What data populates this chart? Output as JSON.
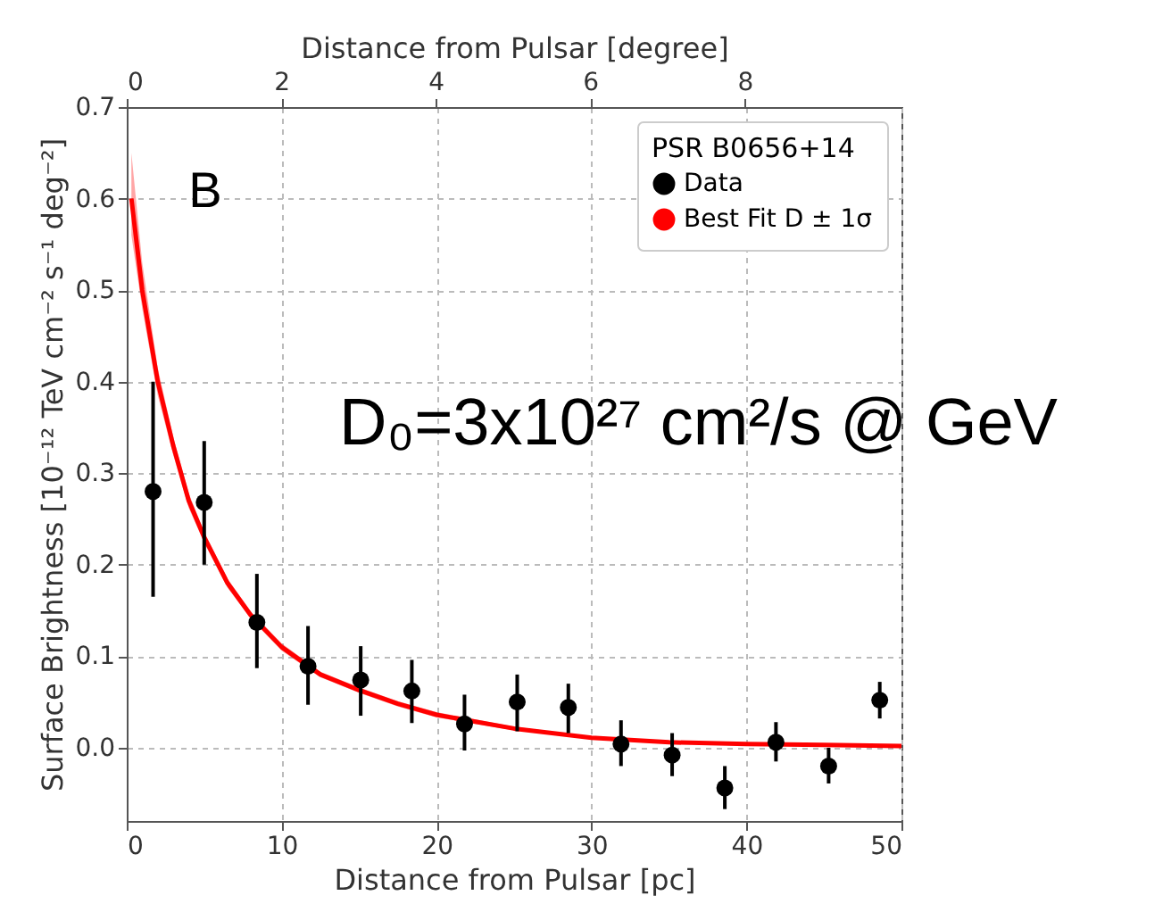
{
  "chart_data": {
    "type": "scatter",
    "xlabel": "Distance from Pulsar [pc]",
    "x2label": "Distance from Pulsar [degree]",
    "ylabel": "Surface Brightness [10⁻¹² TeV cm⁻² s⁻¹ deg⁻²]",
    "legend_title": "PSR B0656+14",
    "annotations": [
      "B",
      "D₀=3x10²⁷ cm²/s @ GeV"
    ],
    "xlim": [
      0,
      50
    ],
    "xticks": [
      0,
      10,
      20,
      30,
      40,
      50
    ],
    "x2lim": [
      0,
      10.03
    ],
    "x2ticks": [
      0,
      2,
      4,
      6,
      8
    ],
    "ylim": [
      -0.08,
      0.7
    ],
    "yticks": [
      {
        "value": 0,
        "label": "0.0"
      },
      0.1,
      0.2,
      0.3,
      0.4,
      0.5,
      0.6,
      0.7
    ],
    "grid": true,
    "legend": "top right",
    "series": [
      {
        "name": "Data",
        "type": "scatter",
        "marker": "circle",
        "color": "#000000",
        "x": [
          1.7,
          5.0,
          8.4,
          11.7,
          15.1,
          18.4,
          21.8,
          25.2,
          28.5,
          31.9,
          35.2,
          38.6,
          41.9,
          45.3,
          48.6
        ],
        "values": [
          0.28,
          0.268,
          0.137,
          0.089,
          0.074,
          0.062,
          0.026,
          0.05,
          0.044,
          0.004,
          -0.008,
          -0.044,
          0.006,
          -0.02,
          0.052
        ],
        "errors": [
          [
            0.165,
            0.4
          ],
          [
            0.2,
            0.335
          ],
          [
            0.087,
            0.19
          ],
          [
            0.047,
            0.133
          ],
          [
            0.035,
            0.111
          ],
          [
            0.027,
            0.096
          ],
          [
            -0.003,
            0.058
          ],
          [
            0.018,
            0.08
          ],
          [
            0.016,
            0.07
          ],
          [
            -0.02,
            0.03
          ],
          [
            -0.031,
            0.016
          ],
          [
            -0.067,
            -0.02
          ],
          [
            -0.015,
            0.028
          ],
          [
            -0.039,
            0.0
          ],
          [
            0.032,
            0.072
          ]
        ]
      },
      {
        "name": "Best Fit D ± 1σ",
        "type": "line",
        "color": "#ff0000",
        "x": [
          0.3,
          1,
          2,
          3,
          4,
          5,
          6.5,
          8,
          10,
          12.5,
          15,
          17.5,
          20,
          25,
          30,
          35,
          40,
          45,
          50
        ],
        "values": [
          0.6,
          0.5,
          0.4,
          0.33,
          0.27,
          0.23,
          0.18,
          0.145,
          0.11,
          0.08,
          0.063,
          0.048,
          0.036,
          0.021,
          0.011,
          0.006,
          0.004,
          0.003,
          0.002
        ],
        "lower": [
          0.56,
          0.48,
          0.385,
          0.32,
          0.262,
          0.224,
          0.175,
          0.141,
          0.106,
          0.077,
          0.06,
          0.045,
          0.033,
          0.019,
          0.01,
          0.005,
          0.003,
          0.002,
          0.001
        ],
        "upper": [
          0.65,
          0.53,
          0.415,
          0.34,
          0.278,
          0.236,
          0.185,
          0.149,
          0.114,
          0.083,
          0.066,
          0.051,
          0.039,
          0.023,
          0.012,
          0.007,
          0.005,
          0.004,
          0.003
        ]
      }
    ]
  }
}
